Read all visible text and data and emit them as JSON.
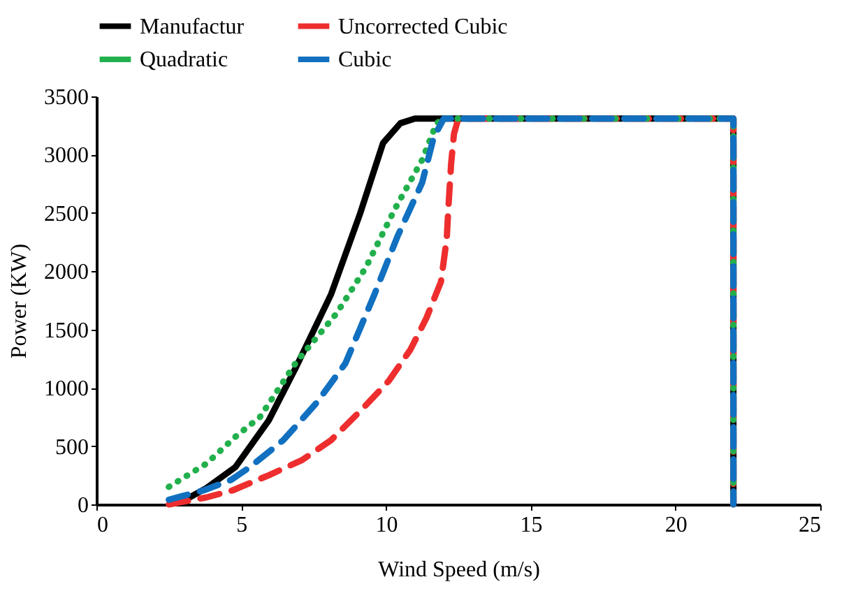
{
  "chart_data": {
    "type": "line",
    "xlabel": "Wind Speed (m/s)",
    "ylabel": "Power (KW)",
    "xlim": [
      0,
      25
    ],
    "xticks": [
      0,
      5,
      10,
      15,
      20,
      25
    ],
    "ylim": [
      0,
      3500
    ],
    "yticks": [
      0,
      500,
      1000,
      1500,
      2000,
      2500,
      3000,
      3500
    ],
    "grid": false,
    "legend": "top",
    "marker": "none",
    "series": [
      {
        "name": "Manufactur",
        "color": "#000000",
        "line_style": "solid",
        "x": [
          2.5,
          3,
          3.8,
          4.8,
          5.95,
          6.9,
          8.1,
          9.1,
          9.9,
          10.5,
          11,
          22,
          22
        ],
        "values": [
          0,
          30,
          140,
          320,
          720,
          1180,
          1800,
          2490,
          3100,
          3270,
          3310,
          3310,
          0
        ]
      },
      {
        "name": "Uncorrected Cubic",
        "color": "#ee2e2e",
        "line_style": "dashed",
        "x": [
          2.5,
          3.8,
          4.7,
          5.95,
          7.1,
          8.1,
          9.15,
          10.1,
          10.85,
          11.4,
          11.9,
          12.1,
          12.15,
          12.25,
          12.35,
          12.5,
          22,
          22
        ],
        "values": [
          0,
          60,
          120,
          250,
          380,
          550,
          810,
          1060,
          1330,
          1600,
          1910,
          2280,
          2520,
          2920,
          3180,
          3310,
          3310,
          0
        ]
      },
      {
        "name": "Quadratic",
        "color": "#22b04c",
        "line_style": "dotted",
        "x": [
          2.5,
          3.8,
          4.8,
          5.65,
          6.9,
          8.3,
          9.3,
          10.3,
          11.25,
          11.75,
          12,
          22,
          22
        ],
        "values": [
          150,
          350,
          580,
          750,
          1220,
          1640,
          2030,
          2530,
          2955,
          3270,
          3310,
          3310,
          0
        ]
      },
      {
        "name": "Cubic",
        "color": "#1170c0",
        "line_style": "dashed",
        "x": [
          2.5,
          3.7,
          4.65,
          5.3,
          6.45,
          7.6,
          8.6,
          9.6,
          10.4,
          11.25,
          11.65,
          12,
          22,
          22
        ],
        "values": [
          40,
          120,
          210,
          320,
          550,
          870,
          1210,
          1800,
          2300,
          2760,
          3150,
          3310,
          3310,
          0
        ]
      }
    ]
  }
}
